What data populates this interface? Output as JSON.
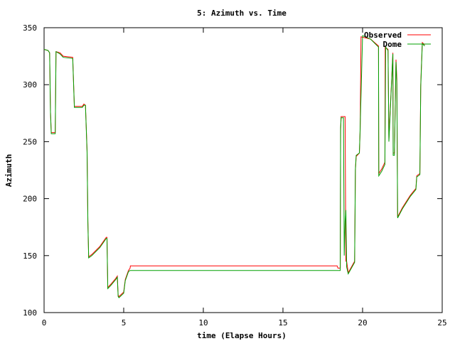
{
  "chart_data": {
    "type": "line",
    "title": "5: Azimuth vs. Time",
    "xlabel": "time (Elapse Hours)",
    "ylabel": "Azimuth",
    "xlim": [
      0,
      25
    ],
    "ylim": [
      100,
      350
    ],
    "xticks": [
      0,
      5,
      10,
      15,
      20,
      25
    ],
    "yticks": [
      100,
      150,
      200,
      250,
      300,
      350
    ],
    "grid": false,
    "legend_position": "top-right",
    "series": [
      {
        "name": "Observed",
        "color": "#ff0000",
        "points": [
          [
            0,
            331
          ],
          [
            0.25,
            330
          ],
          [
            0.35,
            328
          ],
          [
            0.4,
            276
          ],
          [
            0.45,
            258
          ],
          [
            0.7,
            258
          ],
          [
            0.75,
            329
          ],
          [
            1.0,
            328
          ],
          [
            1.2,
            325
          ],
          [
            1.8,
            324
          ],
          [
            1.9,
            281
          ],
          [
            2.4,
            281
          ],
          [
            2.5,
            283
          ],
          [
            2.6,
            282
          ],
          [
            2.7,
            242
          ],
          [
            2.75,
            180
          ],
          [
            2.8,
            149
          ],
          [
            3.0,
            151
          ],
          [
            3.5,
            158
          ],
          [
            3.9,
            166
          ],
          [
            3.95,
            166
          ],
          [
            4.0,
            122
          ],
          [
            4.2,
            125
          ],
          [
            4.5,
            130
          ],
          [
            4.6,
            132
          ],
          [
            4.65,
            115
          ],
          [
            4.7,
            114
          ],
          [
            5.0,
            118
          ],
          [
            5.1,
            129
          ],
          [
            5.3,
            137
          ],
          [
            5.4,
            139
          ],
          [
            5.42,
            141
          ],
          [
            18.4,
            141
          ],
          [
            18.45,
            139
          ],
          [
            18.6,
            139
          ],
          [
            18.62,
            260
          ],
          [
            18.65,
            272
          ],
          [
            18.9,
            272
          ],
          [
            18.95,
            145
          ],
          [
            19.0,
            145
          ],
          [
            19.1,
            135
          ],
          [
            19.5,
            145
          ],
          [
            19.55,
            225
          ],
          [
            19.6,
            237
          ],
          [
            19.8,
            240
          ],
          [
            19.85,
            260
          ],
          [
            19.9,
            342
          ],
          [
            20.5,
            340
          ],
          [
            21.0,
            334
          ],
          [
            21.02,
            222
          ],
          [
            21.2,
            226
          ],
          [
            21.4,
            232
          ],
          [
            21.42,
            333
          ],
          [
            21.6,
            331
          ],
          [
            21.65,
            252
          ],
          [
            21.9,
            328
          ],
          [
            21.92,
            240
          ],
          [
            22.0,
            240
          ],
          [
            22.1,
            322
          ],
          [
            22.15,
            305
          ],
          [
            22.2,
            184
          ],
          [
            22.5,
            192
          ],
          [
            23.0,
            203
          ],
          [
            23.35,
            209
          ],
          [
            23.4,
            220
          ],
          [
            23.6,
            222
          ],
          [
            23.65,
            300
          ],
          [
            23.75,
            337
          ],
          [
            23.9,
            335
          ]
        ]
      },
      {
        "name": "Dome",
        "color": "#00a000",
        "points": [
          [
            0,
            331
          ],
          [
            0.25,
            330
          ],
          [
            0.35,
            328
          ],
          [
            0.4,
            276
          ],
          [
            0.45,
            257
          ],
          [
            0.7,
            257
          ],
          [
            0.75,
            329
          ],
          [
            1.0,
            327
          ],
          [
            1.2,
            324
          ],
          [
            1.8,
            323
          ],
          [
            1.9,
            280
          ],
          [
            2.4,
            280
          ],
          [
            2.5,
            282
          ],
          [
            2.6,
            282
          ],
          [
            2.7,
            240
          ],
          [
            2.75,
            180
          ],
          [
            2.8,
            148
          ],
          [
            3.0,
            150
          ],
          [
            3.5,
            157
          ],
          [
            3.9,
            165
          ],
          [
            3.95,
            165
          ],
          [
            4.0,
            121
          ],
          [
            4.2,
            124
          ],
          [
            4.5,
            129
          ],
          [
            4.6,
            131
          ],
          [
            4.65,
            114
          ],
          [
            4.7,
            113
          ],
          [
            5.0,
            117
          ],
          [
            5.1,
            128
          ],
          [
            5.3,
            136
          ],
          [
            5.4,
            137
          ],
          [
            18.6,
            137
          ],
          [
            18.62,
            262
          ],
          [
            18.65,
            271
          ],
          [
            18.8,
            271
          ],
          [
            18.85,
            150
          ],
          [
            18.9,
            180
          ],
          [
            18.95,
            190
          ],
          [
            19.0,
            140
          ],
          [
            19.1,
            134
          ],
          [
            19.5,
            144
          ],
          [
            19.55,
            226
          ],
          [
            19.6,
            238
          ],
          [
            19.8,
            240
          ],
          [
            19.85,
            262
          ],
          [
            20.0,
            343
          ],
          [
            20.5,
            340
          ],
          [
            21.0,
            333
          ],
          [
            21.02,
            220
          ],
          [
            21.2,
            224
          ],
          [
            21.4,
            230
          ],
          [
            21.45,
            333
          ],
          [
            21.6,
            330
          ],
          [
            21.65,
            250
          ],
          [
            21.9,
            327
          ],
          [
            21.92,
            238
          ],
          [
            22.0,
            238
          ],
          [
            22.1,
            320
          ],
          [
            22.15,
            300
          ],
          [
            22.2,
            183
          ],
          [
            22.5,
            191
          ],
          [
            23.0,
            202
          ],
          [
            23.35,
            208
          ],
          [
            23.4,
            219
          ],
          [
            23.6,
            221
          ],
          [
            23.65,
            298
          ],
          [
            23.75,
            336
          ],
          [
            23.9,
            334
          ]
        ]
      }
    ]
  }
}
